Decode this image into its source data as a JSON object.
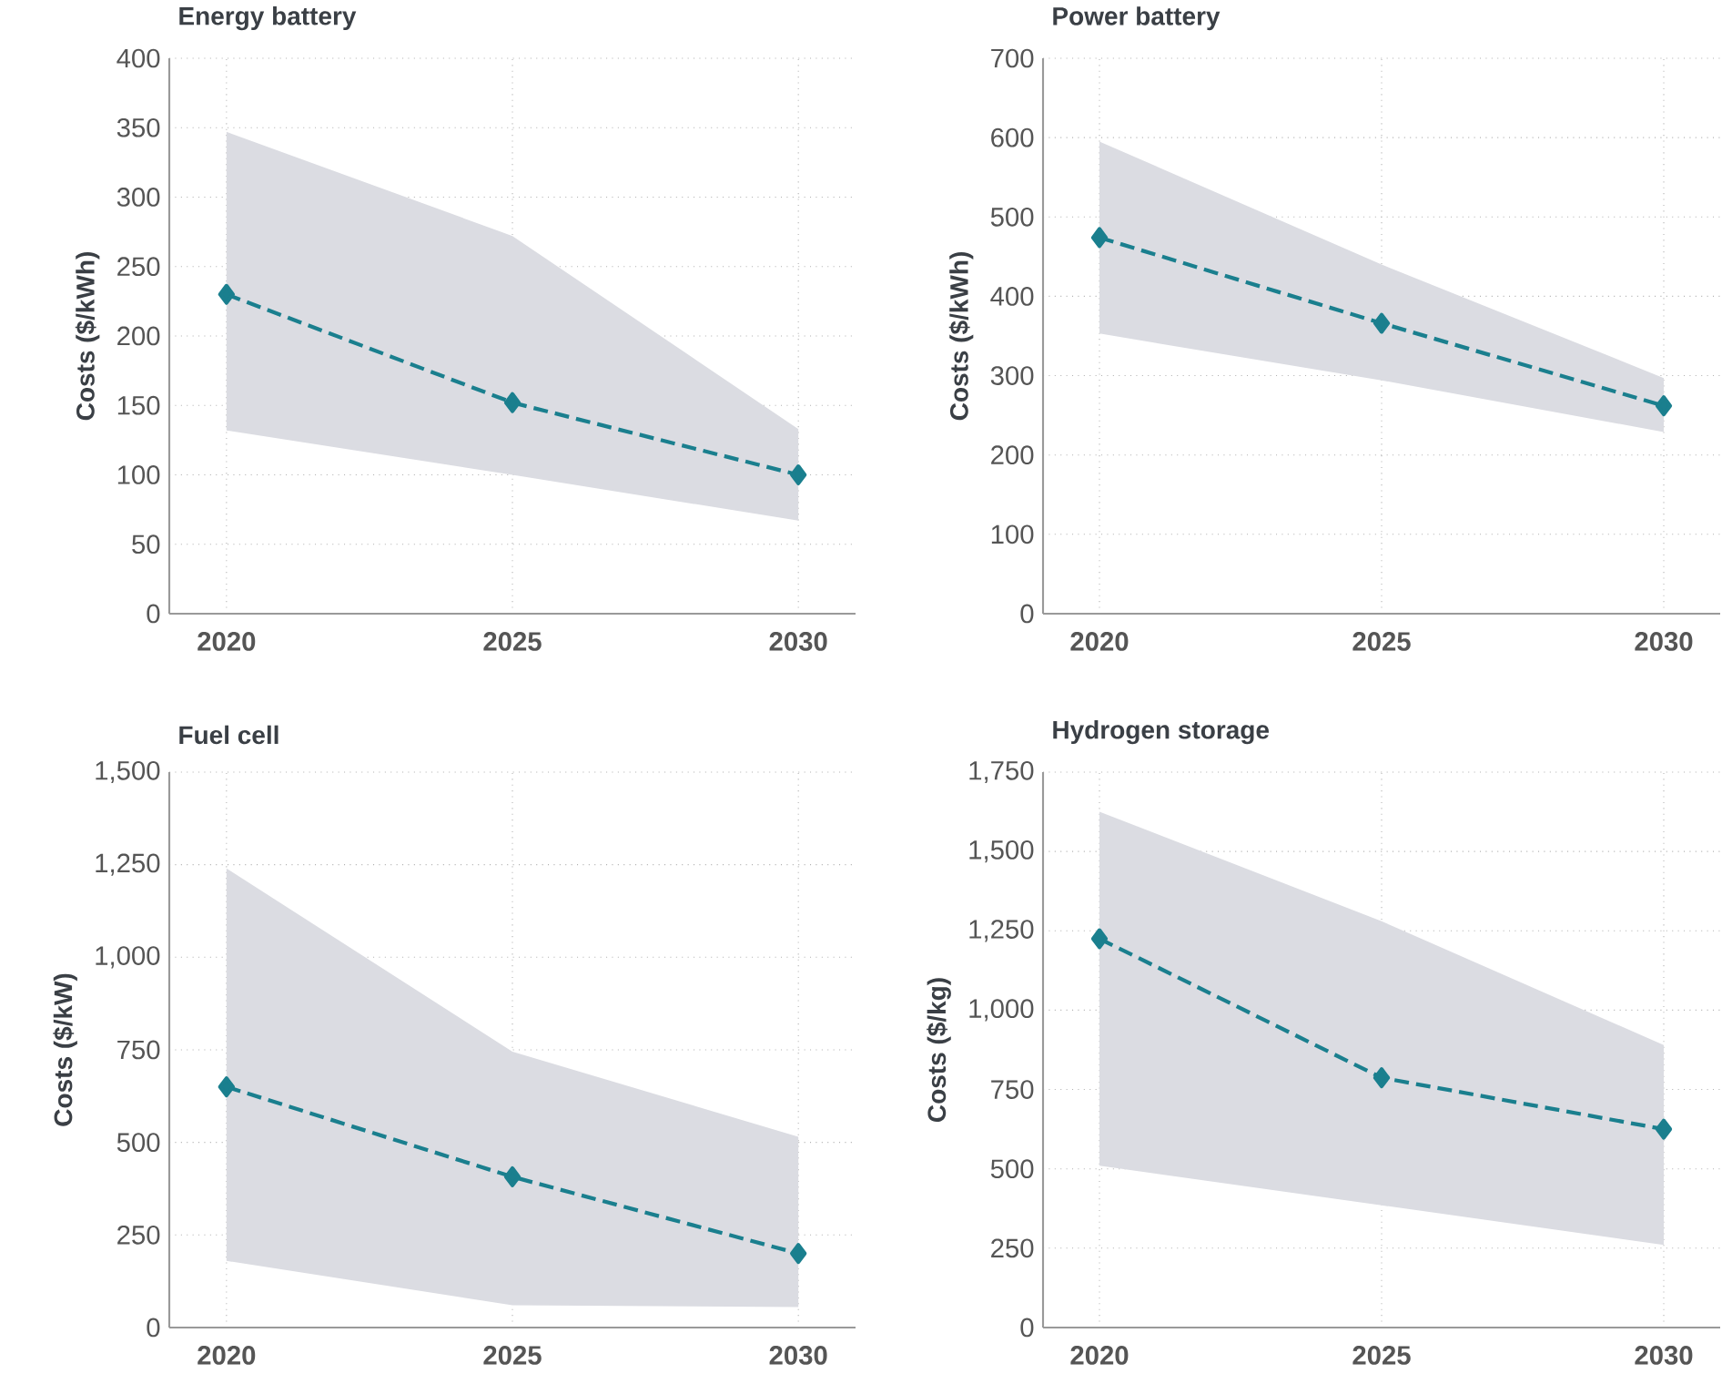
{
  "chart_data": [
    {
      "type": "line",
      "title": "Energy battery",
      "ylabel": "Costs ($/kWh)",
      "x": [
        2020,
        2025,
        2030
      ],
      "xlim": [
        2019,
        2031
      ],
      "xticks": [
        2020,
        2025,
        2030
      ],
      "ylim": [
        0,
        400
      ],
      "yticks": [
        0,
        50,
        100,
        150,
        200,
        250,
        300,
        350,
        400
      ],
      "grid": true,
      "marker": "diamond",
      "line_style": "dashed",
      "series": [
        {
          "color": "#1a7f8e",
          "values": [
            230,
            152,
            100
          ],
          "lower": [
            132,
            100,
            67
          ],
          "upper": [
            347,
            272,
            133
          ]
        }
      ]
    },
    {
      "type": "line",
      "title": "Power battery",
      "ylabel": "Costs ($/kWh)",
      "x": [
        2020,
        2025,
        2030
      ],
      "xlim": [
        2019,
        2031
      ],
      "xticks": [
        2020,
        2025,
        2030
      ],
      "ylim": [
        0,
        700
      ],
      "yticks": [
        0,
        100,
        200,
        300,
        400,
        500,
        600,
        700
      ],
      "grid": true,
      "marker": "diamond",
      "line_style": "dashed",
      "series": [
        {
          "color": "#1a7f8e",
          "values": [
            474,
            366,
            262
          ],
          "lower": [
            353,
            294,
            229
          ],
          "upper": [
            595,
            440,
            297
          ]
        }
      ]
    },
    {
      "type": "line",
      "title": "Fuel cell",
      "ylabel": "Costs ($/kW)",
      "x": [
        2020,
        2025,
        2030
      ],
      "xlim": [
        2019,
        2031
      ],
      "xticks": [
        2020,
        2025,
        2030
      ],
      "ylim": [
        0,
        1500
      ],
      "yticks": [
        0,
        250,
        500,
        750,
        {
          "value": 1000,
          "label": "1,000"
        },
        {
          "value": 1250,
          "label": "1,250"
        },
        {
          "value": 1500,
          "label": "1,500"
        }
      ],
      "grid": true,
      "marker": "diamond",
      "line_style": "dashed",
      "series": [
        {
          "color": "#1a7f8e",
          "values": [
            650,
            407,
            200
          ],
          "lower": [
            180,
            60,
            55
          ],
          "upper": [
            1240,
            745,
            515
          ]
        }
      ]
    },
    {
      "type": "line",
      "title": "Hydrogen storage",
      "ylabel": "Costs ($/kg)",
      "x": [
        2020,
        2025,
        2030
      ],
      "xlim": [
        2019,
        2031
      ],
      "xticks": [
        2020,
        2025,
        2030
      ],
      "ylim": [
        0,
        1750
      ],
      "yticks": [
        0,
        250,
        500,
        750,
        {
          "value": 1000,
          "label": "1,000"
        },
        {
          "value": 1250,
          "label": "1,250"
        },
        {
          "value": 1500,
          "label": "1,500"
        },
        {
          "value": 1750,
          "label": "1,750"
        }
      ],
      "grid": true,
      "marker": "diamond",
      "line_style": "dashed",
      "series": [
        {
          "color": "#1a7f8e",
          "values": [
            1225,
            787,
            625
          ],
          "lower": [
            510,
            385,
            260
          ],
          "upper": [
            1625,
            1280,
            890
          ]
        }
      ]
    }
  ]
}
